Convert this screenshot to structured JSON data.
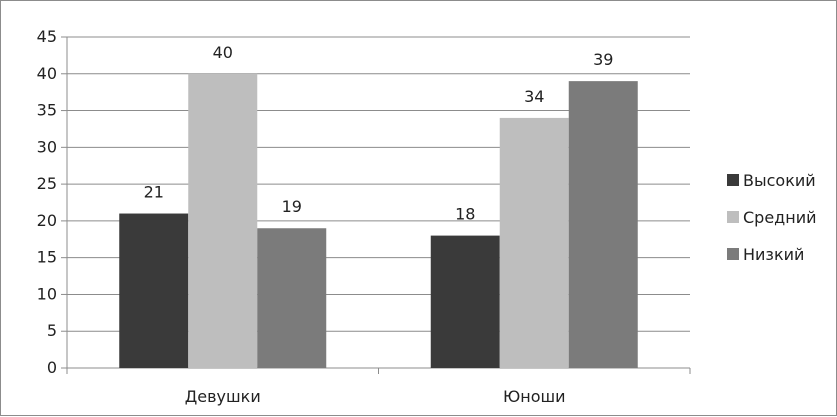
{
  "chart_data": {
    "type": "bar",
    "categories": [
      "Девушки",
      "Юноши"
    ],
    "series": [
      {
        "name": "Высокий",
        "values": [
          21,
          18
        ],
        "color": "#3a3a3a"
      },
      {
        "name": "Средний",
        "values": [
          40,
          34
        ],
        "color": "#bebebe"
      },
      {
        "name": "Низкий",
        "values": [
          19,
          39
        ],
        "color": "#7b7b7b"
      }
    ],
    "ylim": [
      0,
      45
    ],
    "yticks": [
      0,
      5,
      10,
      15,
      20,
      25,
      30,
      35,
      40,
      45
    ],
    "grid": true,
    "legend_position": "right",
    "data_labels": true
  }
}
